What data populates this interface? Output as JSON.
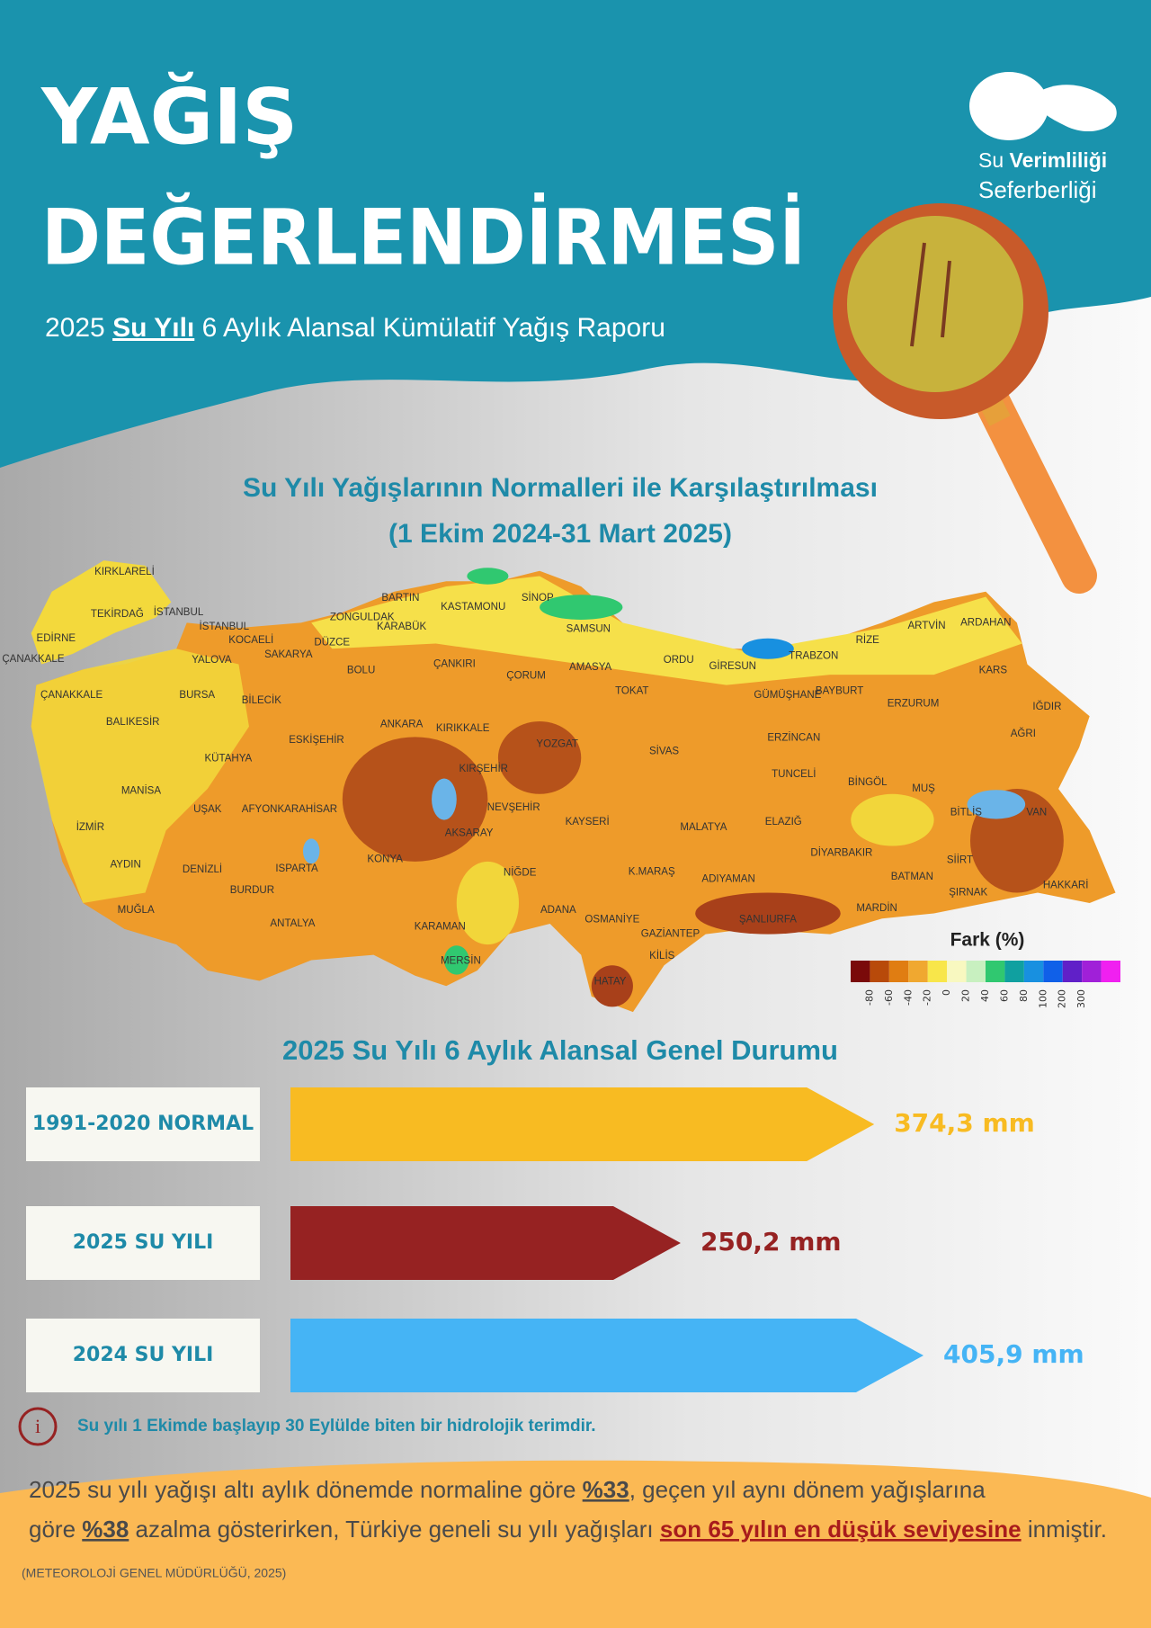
{
  "header": {
    "title_line1": "YAĞIŞ",
    "title_line2": "DEĞERLENDİRMESİ",
    "subtitle_year": "2025",
    "subtitle_link": "Su Yılı",
    "subtitle_rest": "6 Aylık Alansal Kümülatif Yağış Raporu",
    "logo_su": "Su",
    "logo_verim": "Verimliliği",
    "logo_line2": "Seferberliği"
  },
  "map": {
    "title_line1": "Su Yılı Yağışlarının Normalleri ile Karşılaştırılması",
    "title_line2": "(1 Ekim 2024-31 Mart 2025)",
    "legend_title": "Fark (%)",
    "legend_ticks": [
      -80,
      -60,
      -40,
      -20,
      0,
      20,
      40,
      60,
      80,
      100,
      200,
      300
    ],
    "legend_colors": [
      "#7a0a0a",
      "#b84a0a",
      "#e07d12",
      "#f0a830",
      "#f8e64a",
      "#f8f8c0",
      "#c8f0c0",
      "#30c870",
      "#10a0a0",
      "#1890e0",
      "#1060e8",
      "#6020c8",
      "#a020d8",
      "#f020f0"
    ],
    "cities": [
      "KIRKLARELİ",
      "TEKİRDAĞ",
      "İSTANBUL",
      "EDİRNE",
      "ÇANAKKALE",
      "İSTANBUL",
      "KOCAELİ",
      "YALOVA",
      "SAKARYA",
      "DÜZCE",
      "ZONGULDAK",
      "BARTIN",
      "KARABÜK",
      "KASTAMONU",
      "SİNOP",
      "SAMSUN",
      "BOLU",
      "ÇANKIRI",
      "ÇORUM",
      "AMASYA",
      "ORDU",
      "GİRESUN",
      "TRABZON",
      "RİZE",
      "ARTVİN",
      "ARDAHAN",
      "KARS",
      "TOKAT",
      "GÜMÜŞHANE",
      "BAYBURT",
      "ERZURUM",
      "IĞDIR",
      "AĞRI",
      "ÇANAKKALE",
      "BURSA",
      "BİLECİK",
      "BALIKESİR",
      "ESKİŞEHİR",
      "ANKARA",
      "KIRIKKALE",
      "YOZGAT",
      "SİVAS",
      "ERZİNCAN",
      "TUNCELİ",
      "BİNGÖL",
      "MUŞ",
      "KÜTAHYA",
      "KIRŞEHİR",
      "NEVŞEHİR",
      "BİTLİS",
      "VAN",
      "MANİSA",
      "UŞAK",
      "AFYONKARAHİSAR",
      "AKSARAY",
      "KAYSERİ",
      "MALATYA",
      "ELAZIĞ",
      "İZMİR",
      "DİYARBAKIR",
      "SİİRT",
      "AYDIN",
      "DENİZLİ",
      "ISPARTA",
      "KONYA",
      "NİĞDE",
      "K.MARAŞ",
      "ADIYAMAN",
      "BATMAN",
      "HAKKARİ",
      "ŞIRNAK",
      "BURDUR",
      "MUĞLA",
      "ANTALYA",
      "ADANA",
      "OSMANİYE",
      "ŞANLIURFA",
      "MARDİN",
      "KARAMAN",
      "GAZİANTEP",
      "KİLİS",
      "MERSİN",
      "HATAY"
    ]
  },
  "chart_data": {
    "type": "arrow-bar",
    "title": "2025 Su Yılı 6 Aylık Alansal Genel Durumu",
    "categories": [
      "1991-2020 NORMAL",
      "2025 SU YILI",
      "2024 SU YILI"
    ],
    "values": [
      374.3,
      250.2,
      405.9
    ],
    "value_labels": [
      "374,3 mm",
      "250,2 mm",
      "405,9 mm"
    ],
    "colors": [
      "#f8bb22",
      "#962222",
      "#45b4f5"
    ]
  },
  "note": "Su yılı 1 Ekimde başlayıp 30 Eylülde biten bir hidrolojik terimdir.",
  "footer": {
    "line1": [
      "2025 su yılı yağışı altı aylık dönemde normaline göre ",
      "%33",
      ", geçen yıl aynı dönem yağışlarına"
    ],
    "line2": [
      "göre ",
      "%38",
      " azalma gösterirken, Türkiye geneli su yılı yağışları ",
      "son 65 yılın en düşük seviyesine",
      " inmiştir."
    ],
    "source": "(METEOROLOJİ GENEL MÜDÜRLÜĞÜ, 2025)"
  }
}
